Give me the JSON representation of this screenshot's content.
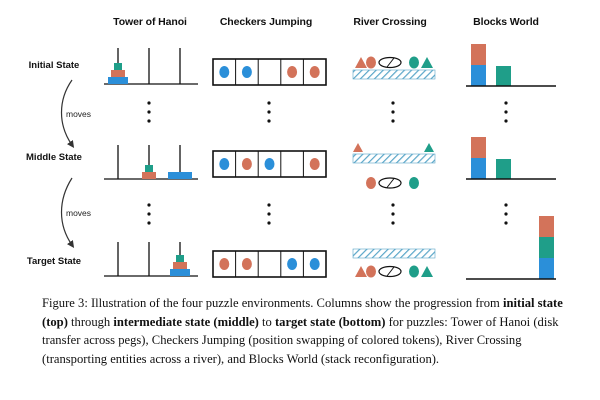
{
  "figure": {
    "columns": [
      "Tower of Hanoi",
      "Checkers Jumping",
      "River Crossing",
      "Blocks World"
    ],
    "rows": [
      "Initial State",
      "Middle State",
      "Target State"
    ],
    "transition_label": "moves"
  },
  "colors": {
    "teal": "#1f9e89",
    "orange": "#d3735a",
    "blue": "#2b8fd9",
    "hatch": "#5aa6c8"
  },
  "caption": {
    "prefix": "Figure 3: Illustration of the four puzzle environments. Columns show the progression from ",
    "b1": "initial state (top)",
    "t1": " through ",
    "b2": "intermediate state (middle)",
    "t2": " to ",
    "b3": "target state (bottom)",
    "t3": " for puzzles: Tower of Hanoi (disk transfer across pegs), Checkers Jumping (position swapping of colored tokens), River Crossing (transporting entities across a river), and Blocks World (stack reconfiguration)."
  }
}
